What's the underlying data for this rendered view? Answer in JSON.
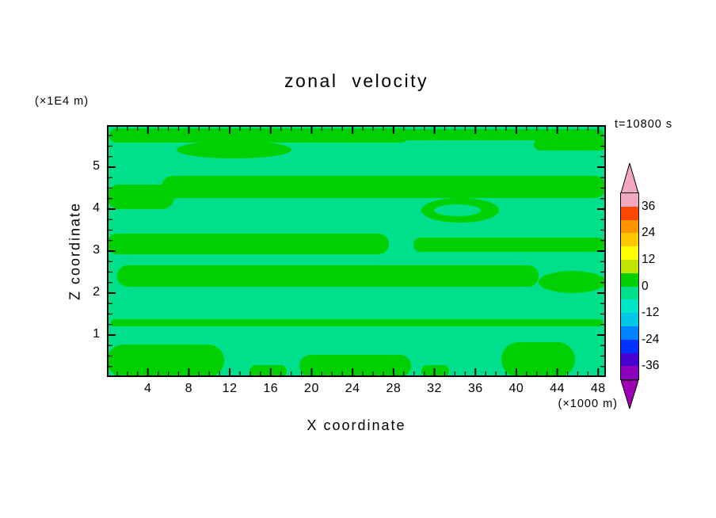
{
  "header": {
    "title": "zonal velocity",
    "timestamp": "t=10800 s"
  },
  "axes": {
    "x": {
      "label": "X coordinate",
      "unit_label": "(×1000 m)",
      "range": [
        0,
        48.75
      ],
      "major_ticks": [
        4,
        8,
        12,
        16,
        20,
        24,
        28,
        32,
        36,
        40,
        44,
        48
      ],
      "minor_step": 1
    },
    "y": {
      "label": "Z coordinate",
      "unit_label": "(×1E4 m)",
      "range": [
        0,
        6
      ],
      "major_ticks": [
        1,
        2,
        3,
        4,
        5
      ],
      "minor_step": 0.25
    }
  },
  "colorbar": {
    "tick_labels": [
      "36",
      "24",
      "12",
      "0",
      "-12",
      "-24",
      "-36"
    ],
    "block_colors": [
      "#F2A8BE",
      "#FF4600",
      "#FF9600",
      "#FFC800",
      "#FFFF00",
      "#BEE600",
      "#00D000",
      "#00E08C",
      "#00E6C8",
      "#00C8E6",
      "#0082FF",
      "#0032FF",
      "#4600D2",
      "#8C00BE"
    ],
    "top_arrow_color": "#F2A8BE",
    "bottom_arrow_color": "#A000B4"
  },
  "chart_data": {
    "type": "heatmap",
    "title": "zonal velocity",
    "time_annotation": "t=10800 s",
    "xlabel": "X coordinate",
    "x_unit": "×1000 m",
    "ylabel": "Z coordinate",
    "y_unit": "×1E4 m",
    "x_range": [
      0,
      48.75
    ],
    "y_range": [
      0,
      6
    ],
    "x_major_ticks": [
      4,
      8,
      12,
      16,
      20,
      24,
      28,
      32,
      36,
      40,
      44,
      48
    ],
    "y_major_ticks": [
      1,
      2,
      3,
      4,
      5
    ],
    "colorbar_tick_values": [
      36,
      24,
      12,
      0,
      -12,
      -24,
      -36
    ],
    "contour_levels": [
      -42,
      -36,
      -30,
      -24,
      -18,
      -12,
      -6,
      0,
      6,
      12,
      18,
      24,
      30,
      36,
      42
    ],
    "level_band_colors_top_to_bottom": [
      "#F2A8BE",
      "#FF4600",
      "#FF9600",
      "#FFC800",
      "#FFFF00",
      "#BEE600",
      "#00D000",
      "#00E08C",
      "#00E6C8",
      "#00C8E6",
      "#0082FF",
      "#0032FF",
      "#4600D2",
      "#8C00BE"
    ],
    "value_summary": "zonal velocity field stays within roughly -6 to +6; the plot shows wavy horizontal bands alternating between the 0..6 contour band (green) and the -6..0 contour band (spring green)",
    "zero_band_colors": {
      "negative_band": "#00E08C",
      "positive_band": "#00D000"
    },
    "positive_band_shapes": [
      {
        "x": 0.005,
        "y": 0.012,
        "w": 0.6,
        "h": 0.058
      },
      {
        "x": 0.57,
        "y": 0.015,
        "w": 0.425,
        "h": 0.045
      },
      {
        "x": 0.14,
        "y": 0.062,
        "w": 0.23,
        "h": 0.07,
        "shape": "ellipse"
      },
      {
        "x": 0.855,
        "y": 0.05,
        "w": 0.145,
        "h": 0.052
      },
      {
        "x": 0.11,
        "y": 0.2,
        "w": 0.89,
        "h": 0.09
      },
      {
        "x": 0.0,
        "y": 0.235,
        "w": 0.135,
        "h": 0.098
      },
      {
        "x": 0.63,
        "y": 0.29,
        "w": 0.155,
        "h": 0.098,
        "shape": "ellipse"
      },
      {
        "x": 0.0,
        "y": 0.43,
        "w": 0.565,
        "h": 0.082
      },
      {
        "x": 0.615,
        "y": 0.448,
        "w": 0.385,
        "h": 0.055
      },
      {
        "x": 0.02,
        "y": 0.558,
        "w": 0.845,
        "h": 0.082
      },
      {
        "x": 0.865,
        "y": 0.578,
        "w": 0.135,
        "h": 0.088,
        "shape": "ellipse"
      },
      {
        "x": 0.008,
        "y": 0.772,
        "w": 0.985,
        "h": 0.027
      },
      {
        "x": 0.0,
        "y": 0.872,
        "w": 0.235,
        "h": 0.128
      },
      {
        "x": 0.285,
        "y": 0.952,
        "w": 0.075,
        "h": 0.048
      },
      {
        "x": 0.385,
        "y": 0.912,
        "w": 0.225,
        "h": 0.088
      },
      {
        "x": 0.63,
        "y": 0.952,
        "w": 0.055,
        "h": 0.048
      },
      {
        "x": 0.79,
        "y": 0.862,
        "w": 0.148,
        "h": 0.138
      }
    ],
    "negative_band_holes": [
      {
        "x": 0.655,
        "y": 0.315,
        "w": 0.095,
        "h": 0.048,
        "shape": "ellipse"
      }
    ]
  }
}
